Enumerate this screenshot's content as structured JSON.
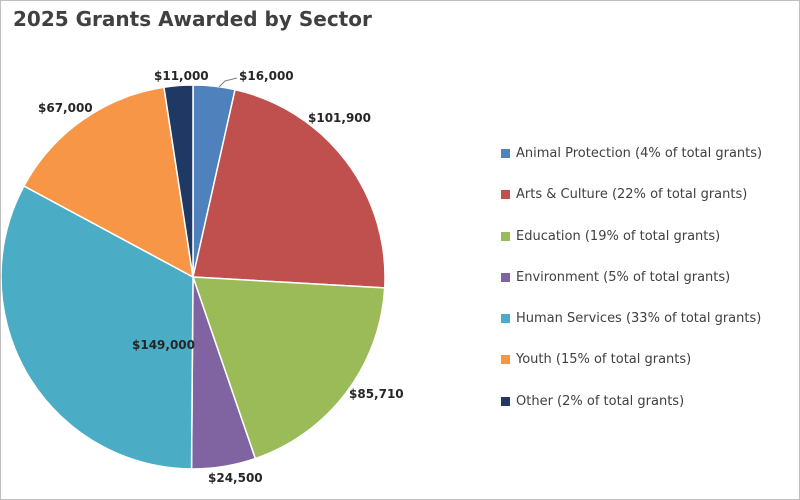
{
  "chart_data": {
    "type": "pie",
    "title": "2025 Grants Awarded by Sector",
    "categories": [
      "Animal Protection",
      "Arts & Culture",
      "Education",
      "Environment",
      "Human Services",
      "Youth",
      "Other"
    ],
    "values": [
      16000,
      101900,
      85710,
      24500,
      149000,
      67000,
      11000
    ],
    "data_labels": [
      "$16,000",
      "$101,900",
      "$85,710",
      "$24,500",
      "$149,000",
      "$67,000",
      "$11,000"
    ],
    "legend_labels": [
      "Animal Protection (4% of total grants)",
      "Arts & Culture (22% of total grants)",
      "Education (19% of total grants)",
      "Environment (5% of total grants)",
      "Human Services (33% of total grants)",
      "Youth (15% of total grants)",
      "Other (2% of total grants)"
    ],
    "colors": [
      "#4f81bd",
      "#c0504d",
      "#9bbb59",
      "#8064a2",
      "#4bacc6",
      "#f79646",
      "#1f3864"
    ],
    "legend_position": "right",
    "start_angle": "12 o'clock, clockwise"
  }
}
